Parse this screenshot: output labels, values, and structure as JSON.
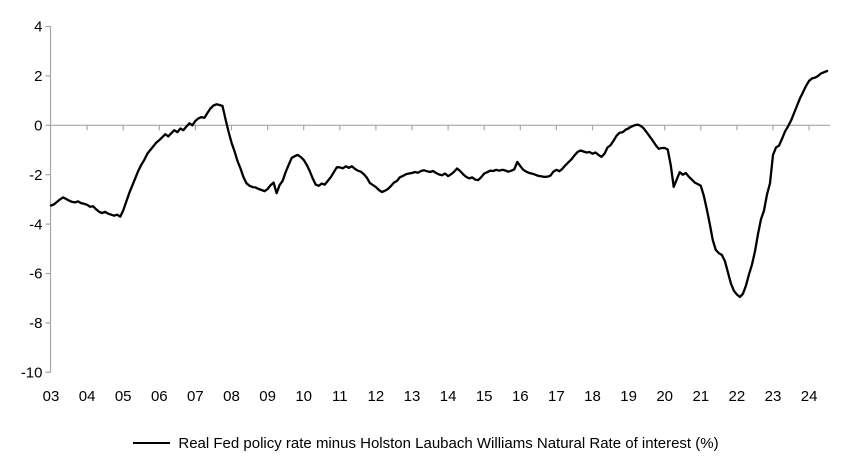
{
  "chart_data": {
    "type": "line",
    "title": "",
    "legend": "Real Fed policy rate minus Holston Laubach Williams Natural Rate of interest (%)",
    "legend_position": "bottom-center",
    "grid": "zero-line-only",
    "colors": {
      "series": "#000000",
      "axis": "#a6a6a6",
      "zero_line": "#a6a6a6",
      "text": "#000000"
    },
    "y_axis": {
      "ylim": [
        -10,
        4
      ],
      "tick_values": [
        4,
        2,
        0,
        -2,
        -4,
        -6,
        -8,
        -10
      ],
      "tick_labels": [
        "4",
        "2",
        "0",
        "-2",
        "-4",
        "-6",
        "-8",
        "-10"
      ]
    },
    "x_axis": {
      "xlim": [
        2003.0,
        2024.58
      ],
      "tick_years": [
        2003,
        2004,
        2005,
        2006,
        2007,
        2008,
        2009,
        2010,
        2011,
        2012,
        2013,
        2014,
        2015,
        2016,
        2017,
        2018,
        2019,
        2020,
        2021,
        2022,
        2023,
        2024
      ],
      "tick_labels": [
        "03",
        "04",
        "05",
        "06",
        "07",
        "08",
        "09",
        "10",
        "11",
        "12",
        "13",
        "14",
        "15",
        "16",
        "17",
        "18",
        "19",
        "20",
        "21",
        "22",
        "23",
        "24"
      ]
    },
    "series": [
      {
        "name": "Real Fed policy rate minus Holston Laubach Williams Natural Rate of interest (%)",
        "x_start": 2003.0,
        "x_interval": "monthly",
        "values": [
          -3.25,
          -3.2,
          -3.1,
          -3.0,
          -2.92,
          -2.98,
          -3.05,
          -3.1,
          -3.12,
          -3.08,
          -3.15,
          -3.18,
          -3.22,
          -3.3,
          -3.28,
          -3.4,
          -3.5,
          -3.55,
          -3.5,
          -3.58,
          -3.62,
          -3.66,
          -3.62,
          -3.7,
          -3.45,
          -3.1,
          -2.75,
          -2.45,
          -2.15,
          -1.85,
          -1.6,
          -1.4,
          -1.15,
          -1.0,
          -0.85,
          -0.7,
          -0.6,
          -0.48,
          -0.36,
          -0.45,
          -0.32,
          -0.2,
          -0.28,
          -0.13,
          -0.2,
          -0.05,
          0.08,
          0.0,
          0.18,
          0.28,
          0.33,
          0.3,
          0.5,
          0.68,
          0.8,
          0.85,
          0.82,
          0.78,
          0.25,
          -0.25,
          -0.7,
          -1.05,
          -1.45,
          -1.75,
          -2.1,
          -2.35,
          -2.45,
          -2.5,
          -2.52,
          -2.58,
          -2.62,
          -2.67,
          -2.58,
          -2.42,
          -2.32,
          -2.75,
          -2.42,
          -2.25,
          -1.9,
          -1.6,
          -1.32,
          -1.25,
          -1.2,
          -1.28,
          -1.4,
          -1.6,
          -1.85,
          -2.15,
          -2.4,
          -2.45,
          -2.36,
          -2.4,
          -2.25,
          -2.1,
          -1.9,
          -1.7,
          -1.7,
          -1.74,
          -1.66,
          -1.72,
          -1.66,
          -1.76,
          -1.84,
          -1.88,
          -1.98,
          -2.12,
          -2.34,
          -2.42,
          -2.5,
          -2.62,
          -2.7,
          -2.65,
          -2.58,
          -2.46,
          -2.32,
          -2.25,
          -2.1,
          -2.05,
          -1.98,
          -1.95,
          -1.93,
          -1.89,
          -1.92,
          -1.85,
          -1.82,
          -1.86,
          -1.89,
          -1.85,
          -1.93,
          -1.99,
          -2.02,
          -1.95,
          -2.06,
          -1.98,
          -1.88,
          -1.75,
          -1.85,
          -1.98,
          -2.09,
          -2.15,
          -2.11,
          -2.2,
          -2.22,
          -2.1,
          -1.95,
          -1.9,
          -1.84,
          -1.85,
          -1.8,
          -1.84,
          -1.8,
          -1.83,
          -1.88,
          -1.84,
          -1.78,
          -1.48,
          -1.65,
          -1.8,
          -1.88,
          -1.93,
          -1.96,
          -2.0,
          -2.05,
          -2.07,
          -2.09,
          -2.08,
          -2.04,
          -1.88,
          -1.8,
          -1.86,
          -1.76,
          -1.62,
          -1.5,
          -1.38,
          -1.22,
          -1.08,
          -1.02,
          -1.06,
          -1.1,
          -1.08,
          -1.15,
          -1.1,
          -1.2,
          -1.28,
          -1.15,
          -0.9,
          -0.8,
          -0.62,
          -0.42,
          -0.3,
          -0.28,
          -0.18,
          -0.12,
          -0.05,
          0.0,
          0.03,
          -0.02,
          -0.12,
          -0.28,
          -0.45,
          -0.62,
          -0.8,
          -0.95,
          -0.92,
          -0.92,
          -0.98,
          -1.6,
          -2.49,
          -2.2,
          -1.9,
          -2.0,
          -1.93,
          -2.08,
          -2.2,
          -2.32,
          -2.38,
          -2.45,
          -2.85,
          -3.4,
          -4.0,
          -4.65,
          -5.05,
          -5.18,
          -5.25,
          -5.5,
          -5.95,
          -6.4,
          -6.7,
          -6.85,
          -6.95,
          -6.82,
          -6.5,
          -6.05,
          -5.65,
          -5.1,
          -4.4,
          -3.8,
          -3.45,
          -2.8,
          -2.35,
          -1.2,
          -0.9,
          -0.82,
          -0.55,
          -0.25,
          -0.05,
          0.2,
          0.5,
          0.8,
          1.1,
          1.35,
          1.6,
          1.8,
          1.9,
          1.93,
          2.0,
          2.1,
          2.15,
          2.2
        ]
      }
    ]
  }
}
